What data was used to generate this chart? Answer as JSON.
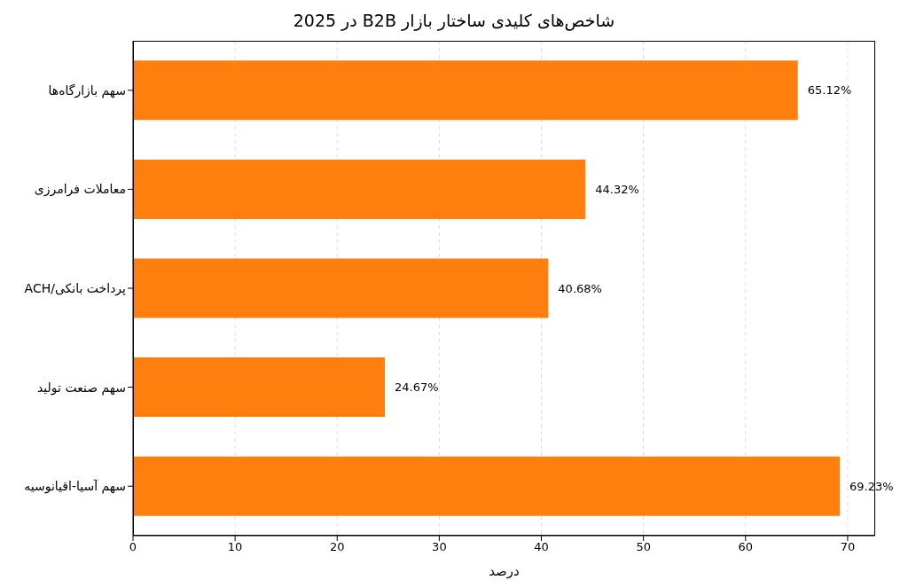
{
  "chart_data": {
    "type": "bar",
    "orientation": "horizontal",
    "title": "شاخص‌های کلیدی ساختار بازار B2B در 2025",
    "xlabel": "درصد",
    "categories": [
      "سهم بازارگاه‌ها",
      "معاملات فرامرزی",
      "پرداخت بانکی/ACH",
      "سهم صنعت تولید",
      "سهم آسیا-اقیانوسیه"
    ],
    "values": [
      65.12,
      44.32,
      40.68,
      24.67,
      69.23
    ],
    "value_labels": [
      "65.12%",
      "44.32%",
      "40.68%",
      "24.67%",
      "69.23%"
    ],
    "color": "#ff7f0e",
    "xlim": [
      0,
      72.7
    ],
    "xticks": [
      0,
      10,
      20,
      30,
      40,
      50,
      60,
      70
    ],
    "grid": "x",
    "legend": false
  }
}
